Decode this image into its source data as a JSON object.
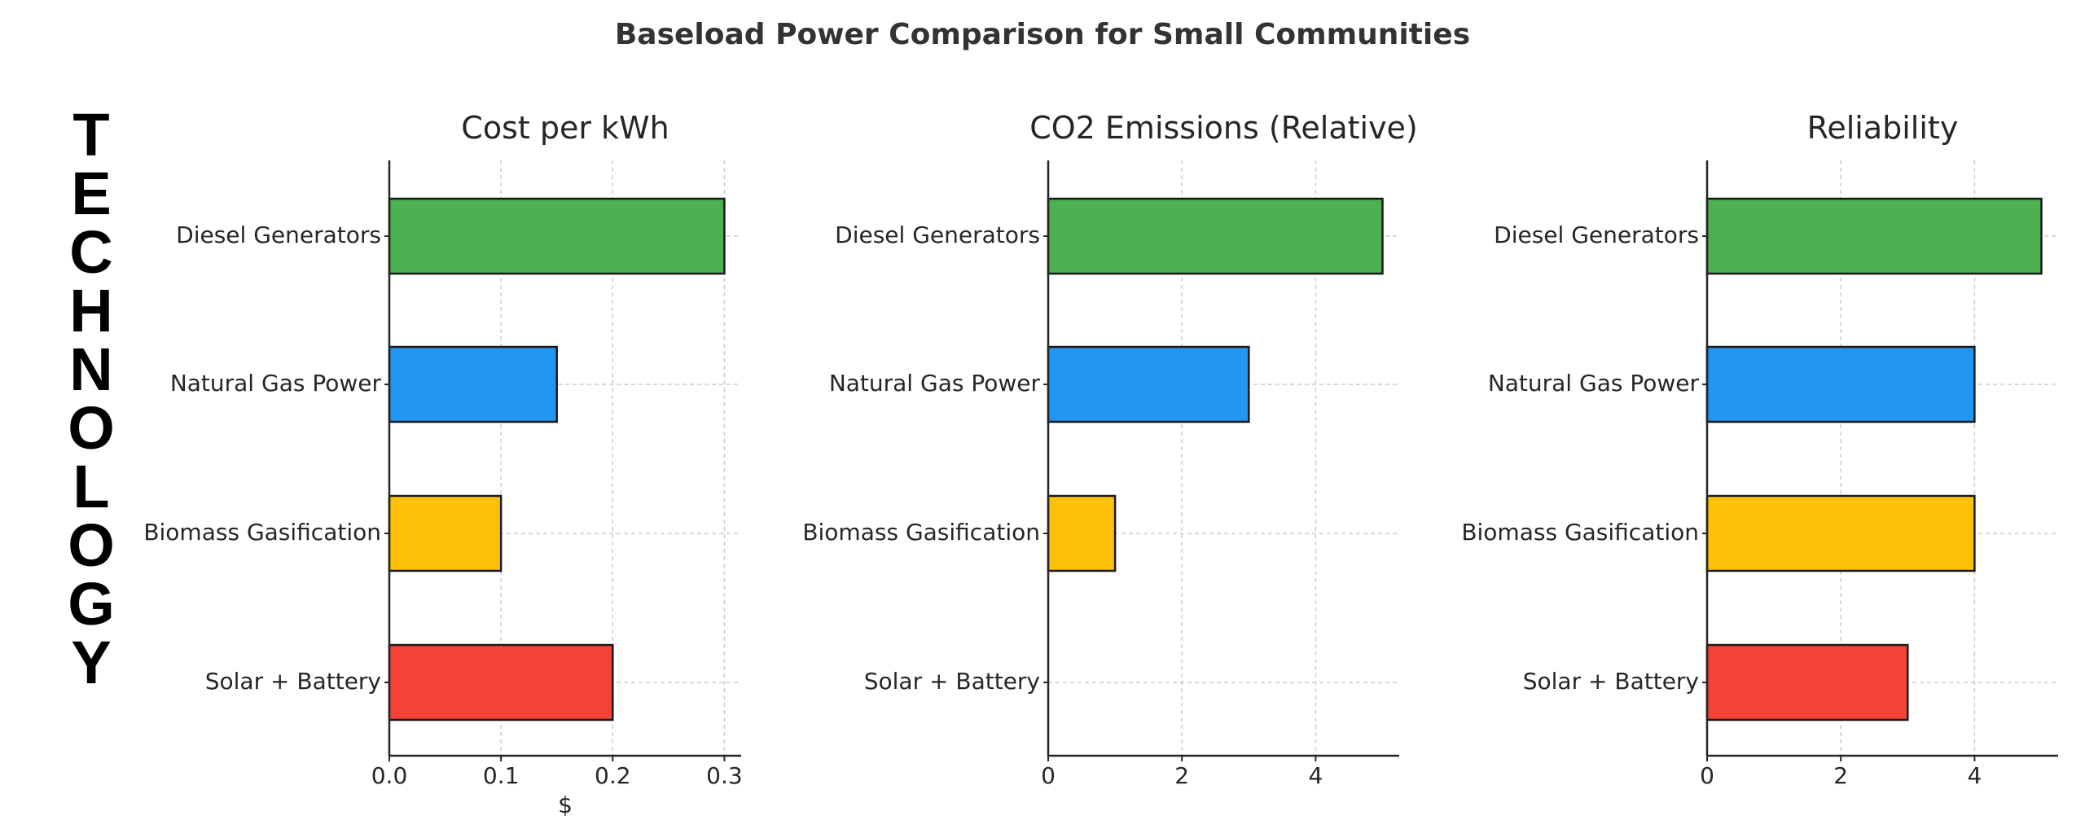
{
  "suptitle": "Baseload Power Comparison for Small Communities",
  "side_label": "TECHNOLOGY",
  "colors": {
    "Diesel Generators": "#4caf50",
    "Natural Gas Power": "#2196f3",
    "Biomass Gasification": "#ffc107",
    "Solar + Battery": "#f44336"
  },
  "chart_data": [
    {
      "type": "bar",
      "orientation": "horizontal",
      "title": "Cost per kWh",
      "xlabel": "$",
      "ylabel": "",
      "categories": [
        "Diesel Generators",
        "Natural Gas Power",
        "Biomass Gasification",
        "Solar + Battery"
      ],
      "values": [
        0.3,
        0.15,
        0.1,
        0.2
      ],
      "xlim": [
        0,
        0.315
      ],
      "xticks": [
        "0.0",
        "0.1",
        "0.2",
        "0.3"
      ],
      "xtick_values": [
        0,
        0.1,
        0.2,
        0.3
      ],
      "grid": true
    },
    {
      "type": "bar",
      "orientation": "horizontal",
      "title": "CO2 Emissions (Relative)",
      "xlabel": "",
      "ylabel": "",
      "categories": [
        "Diesel Generators",
        "Natural Gas Power",
        "Biomass Gasification",
        "Solar + Battery"
      ],
      "values": [
        5,
        3,
        1,
        0
      ],
      "xlim": [
        0,
        5.25
      ],
      "xticks": [
        "0",
        "2",
        "4"
      ],
      "xtick_values": [
        0,
        2,
        4
      ],
      "grid": true
    },
    {
      "type": "bar",
      "orientation": "horizontal",
      "title": "Reliability",
      "xlabel": "",
      "ylabel": "",
      "categories": [
        "Diesel Generators",
        "Natural Gas Power",
        "Biomass Gasification",
        "Solar + Battery"
      ],
      "values": [
        5,
        4,
        4,
        3
      ],
      "xlim": [
        0,
        5.25
      ],
      "xticks": [
        "0",
        "2",
        "4"
      ],
      "xtick_values": [
        0,
        2,
        4
      ],
      "grid": true
    }
  ]
}
